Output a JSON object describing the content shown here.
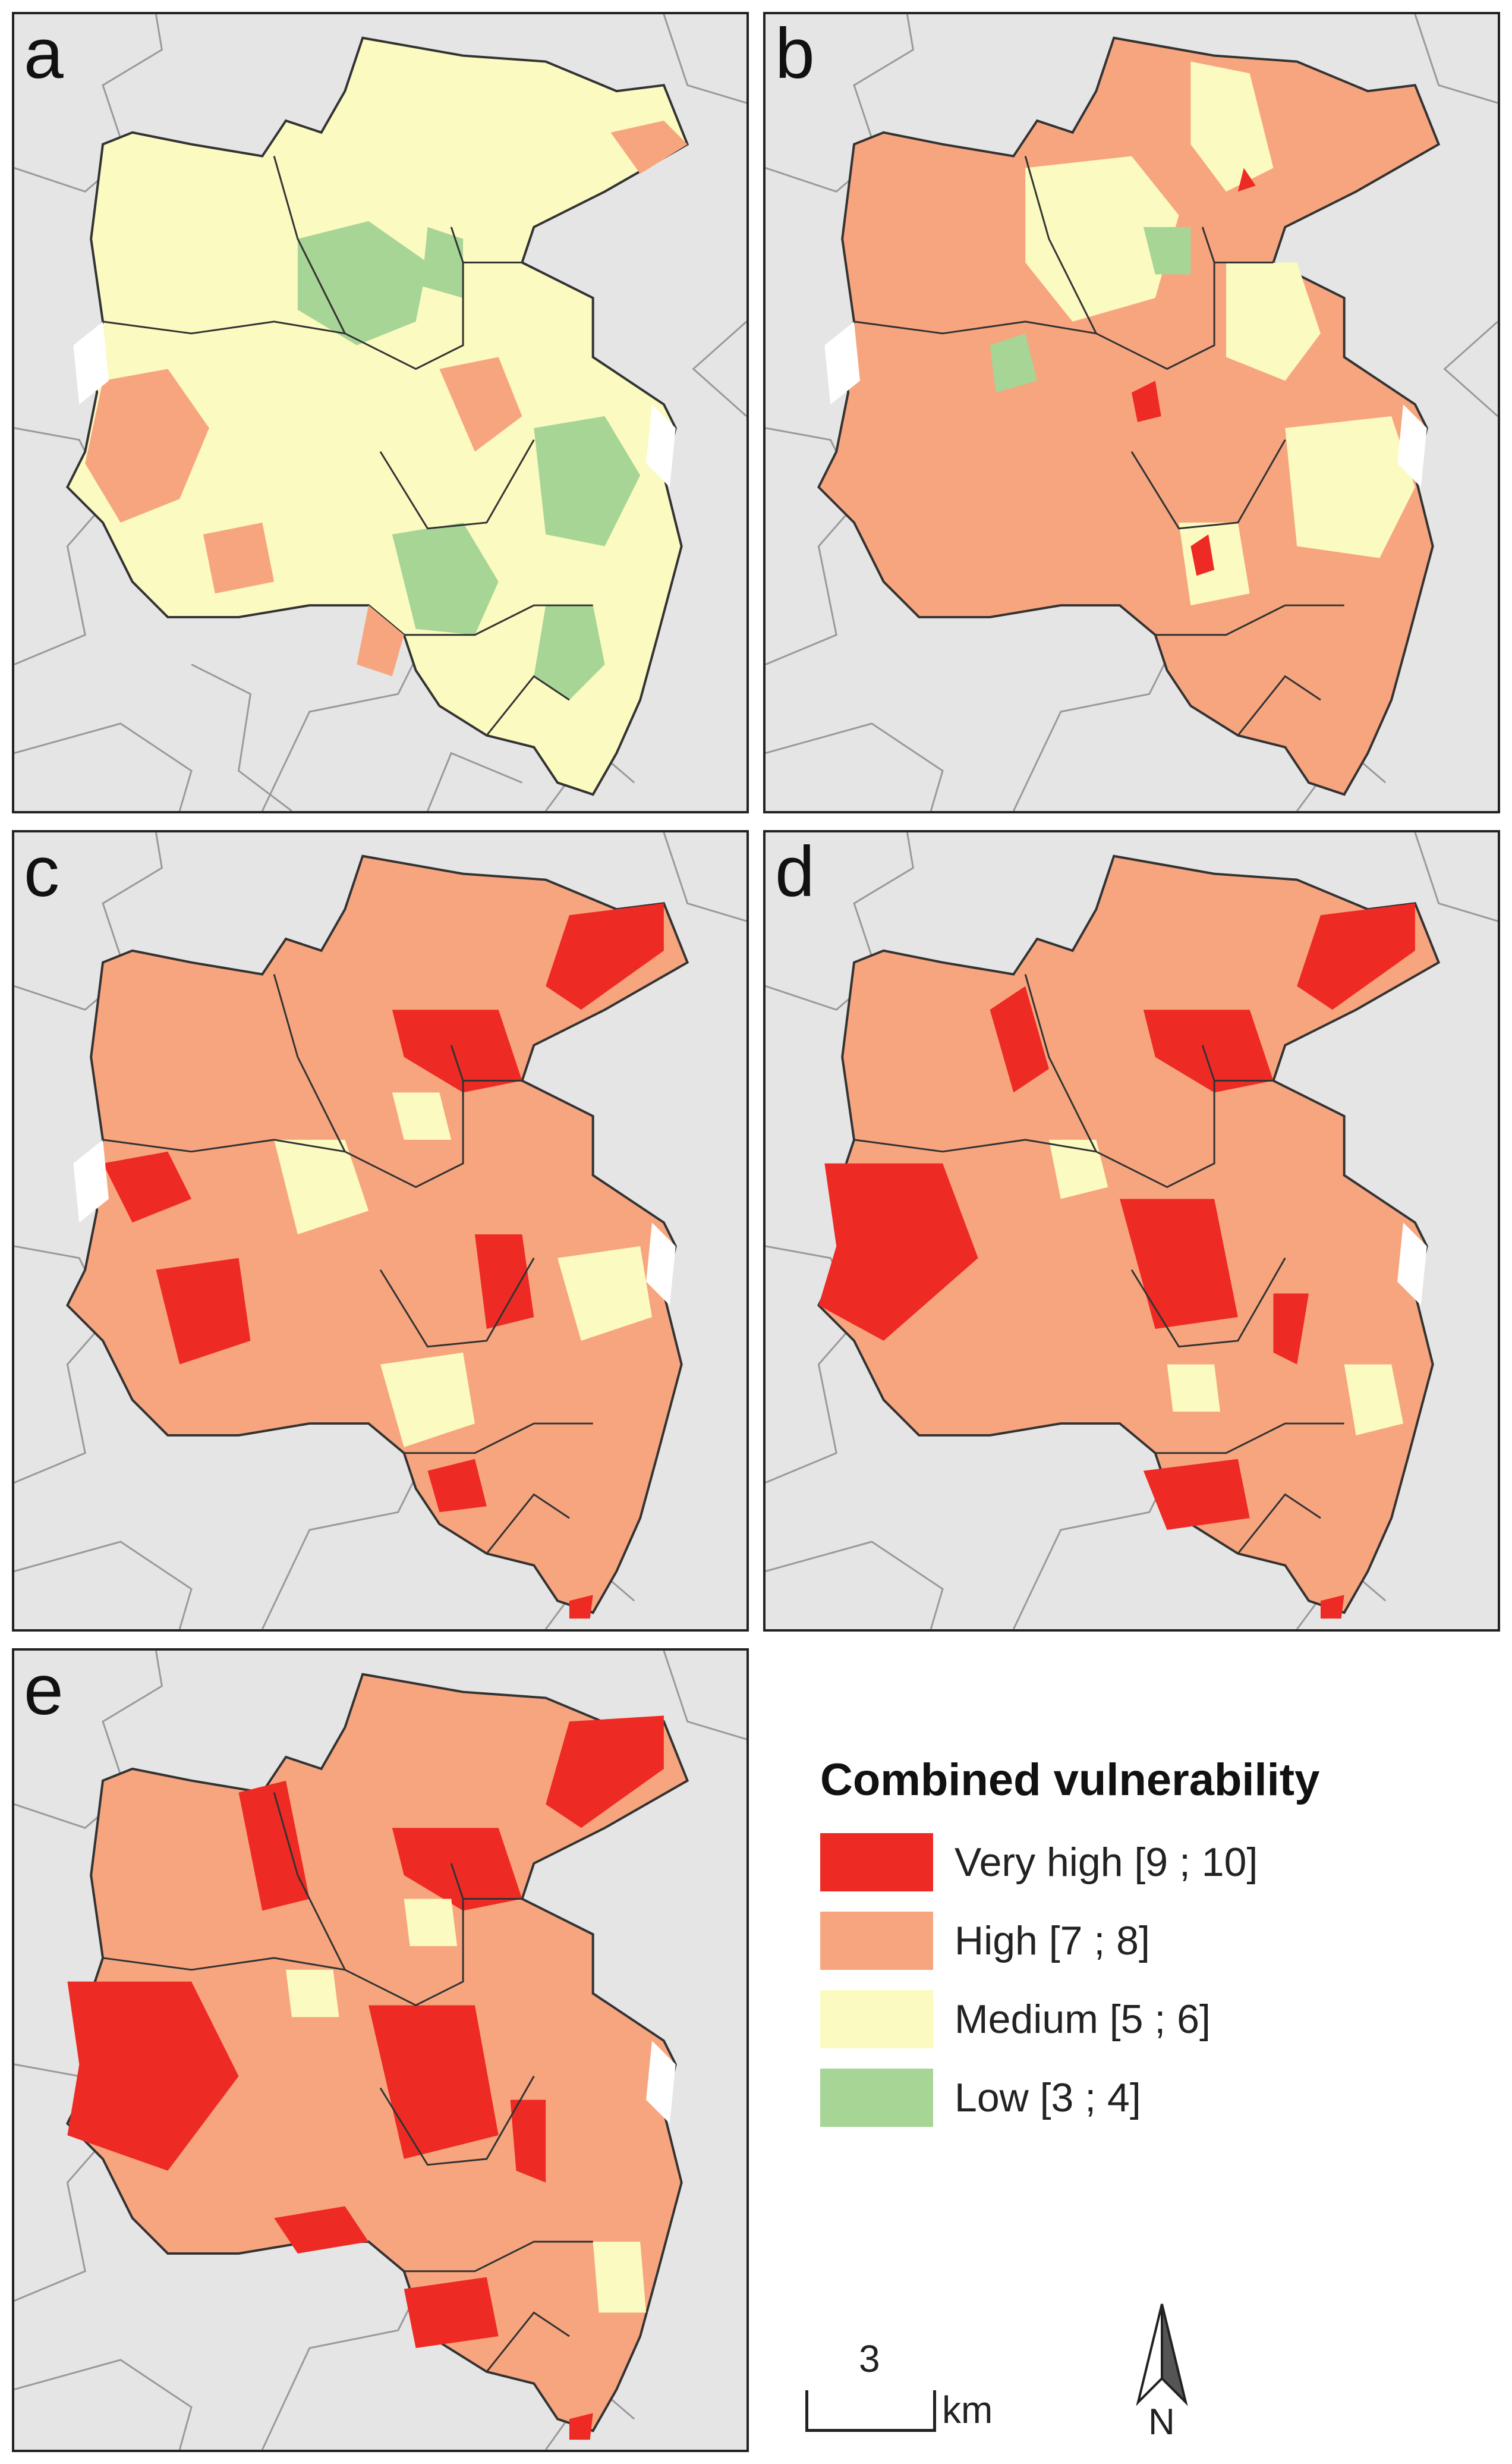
{
  "panels": [
    {
      "id": "a",
      "label": "a"
    },
    {
      "id": "b",
      "label": "b"
    },
    {
      "id": "c",
      "label": "c"
    },
    {
      "id": "d",
      "label": "d"
    },
    {
      "id": "e",
      "label": "e"
    }
  ],
  "legend": {
    "title": "Combined vulnerability",
    "items": [
      {
        "label": "Very high [9 ; 10]",
        "color": "#ee2a24"
      },
      {
        "label": "High [7 ; 8]",
        "color": "#f7a57f"
      },
      {
        "label": "Medium [5 ; 6]",
        "color": "#fbfac0"
      },
      {
        "label": "Low [3 ; 4]",
        "color": "#a7d596"
      }
    ]
  },
  "scale_bar": {
    "value": "3",
    "unit": "km"
  },
  "north_arrow": {
    "label": "N"
  },
  "colors": {
    "background": "#e5e5e5",
    "no_data": "#ffffff",
    "boundary": "#333333"
  },
  "icons": [
    "north-arrow-icon"
  ]
}
